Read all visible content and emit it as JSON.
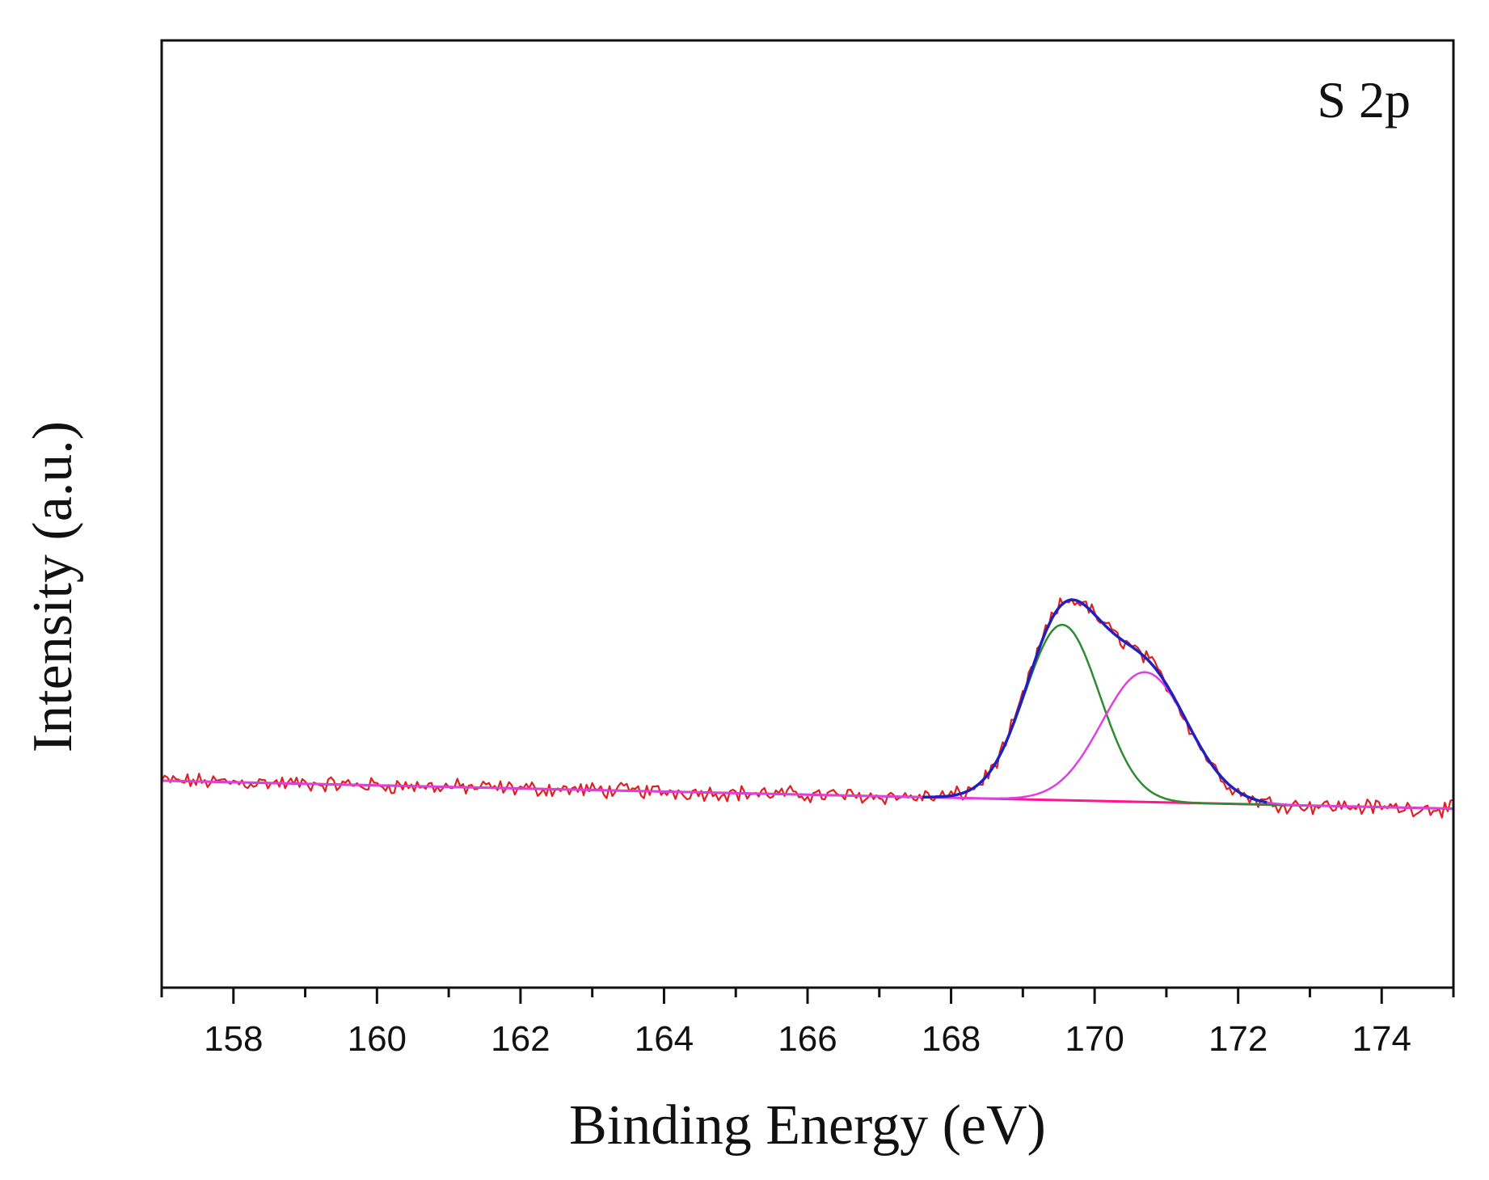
{
  "chart_data": {
    "type": "line",
    "title": "",
    "annotation": "S 2p",
    "xlabel": "Binding Energy (eV)",
    "ylabel": "Intensity (a.u.)",
    "xlim": [
      157,
      175
    ],
    "ylim": [
      -0.55,
      2.15
    ],
    "x_ticks": [
      158,
      160,
      162,
      164,
      166,
      168,
      170,
      172,
      174
    ],
    "x_tick_labels": [
      "158",
      "160",
      "162",
      "164",
      "166",
      "168",
      "170",
      "172",
      "174"
    ],
    "x_minor_step": 1,
    "y_ticks_shown": false,
    "grid": false,
    "legend": "none",
    "background": {
      "name": "Background",
      "color": "#ff1493",
      "start": [
        157,
        0.04
      ],
      "end": [
        175,
        -0.04
      ]
    },
    "components": [
      {
        "name": "Component 1",
        "color": "#2e8b2e",
        "center": 169.55,
        "height": 0.5,
        "sigma": 0.52
      },
      {
        "name": "Component 2",
        "color": "#e040e0",
        "center": 170.7,
        "height": 0.37,
        "sigma": 0.6
      }
    ],
    "series": [
      {
        "name": "Raw data",
        "color": "#e02020"
      },
      {
        "name": "Envelope fit",
        "color": "#2020c0",
        "x_from": 167.6,
        "x_to": 172.4
      }
    ]
  }
}
